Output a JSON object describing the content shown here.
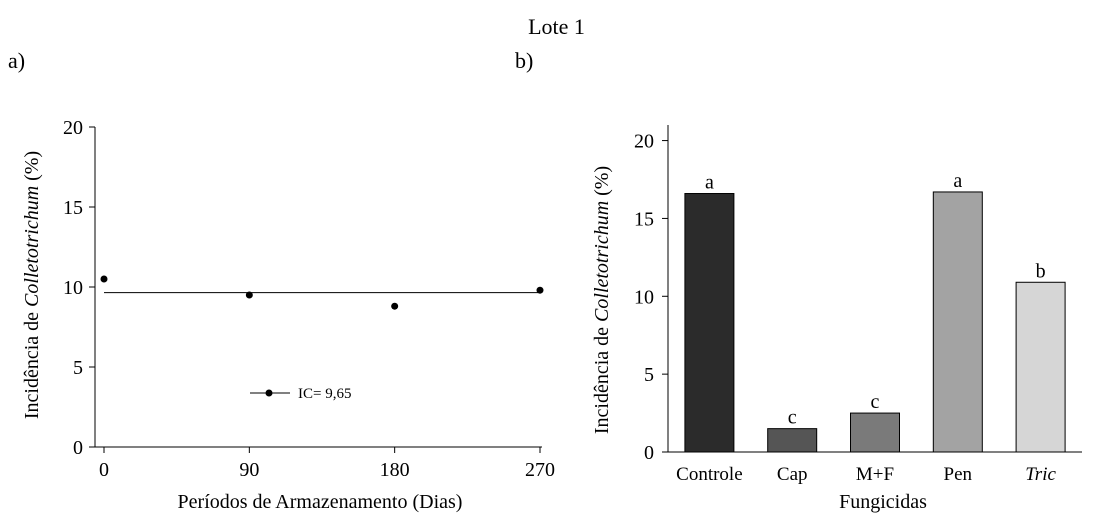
{
  "figure": {
    "title": "Lote 1",
    "panel_a_label": "a)",
    "panel_b_label": "b)"
  },
  "chart_data": [
    {
      "type": "scatter",
      "xlabel": "Períodos de Armazenamento (Dias)",
      "ylabel_prefix": "Incidência de ",
      "ylabel_italic": "Colletotrichum",
      "ylabel_suffix": " (%)",
      "xticks": [
        "0",
        "90",
        "180",
        "270"
      ],
      "xlim": [
        0,
        270
      ],
      "yticks": [
        "0",
        "5",
        "10",
        "15",
        "20"
      ],
      "ylim": [
        0,
        20
      ],
      "points": [
        {
          "x": 0,
          "y": 10.5
        },
        {
          "x": 90,
          "y": 9.5
        },
        {
          "x": 180,
          "y": 8.8
        },
        {
          "x": 270,
          "y": 9.8
        }
      ],
      "fit_line": {
        "y": 9.65
      },
      "legend_label": "IC= 9,65",
      "grid": false
    },
    {
      "type": "bar",
      "xlabel": "Fungicidas",
      "ylabel_prefix": "Incidência de ",
      "ylabel_italic": "Colletotrichum",
      "ylabel_suffix": " (%)",
      "yticks": [
        "0",
        "5",
        "10",
        "15",
        "20"
      ],
      "ylim": [
        0,
        21
      ],
      "grid": false,
      "categories": [
        "Controle",
        "Cap",
        "M+F",
        "Pen",
        "Tric"
      ],
      "italic_categories": [
        "Tric"
      ],
      "values": [
        16.6,
        1.5,
        2.5,
        16.7,
        10.9
      ],
      "letters": [
        "a",
        "c",
        "c",
        "a",
        "b"
      ],
      "colors": [
        "#2b2b2b",
        "#555555",
        "#7a7a7a",
        "#a3a3a3",
        "#d6d6d6"
      ]
    }
  ]
}
